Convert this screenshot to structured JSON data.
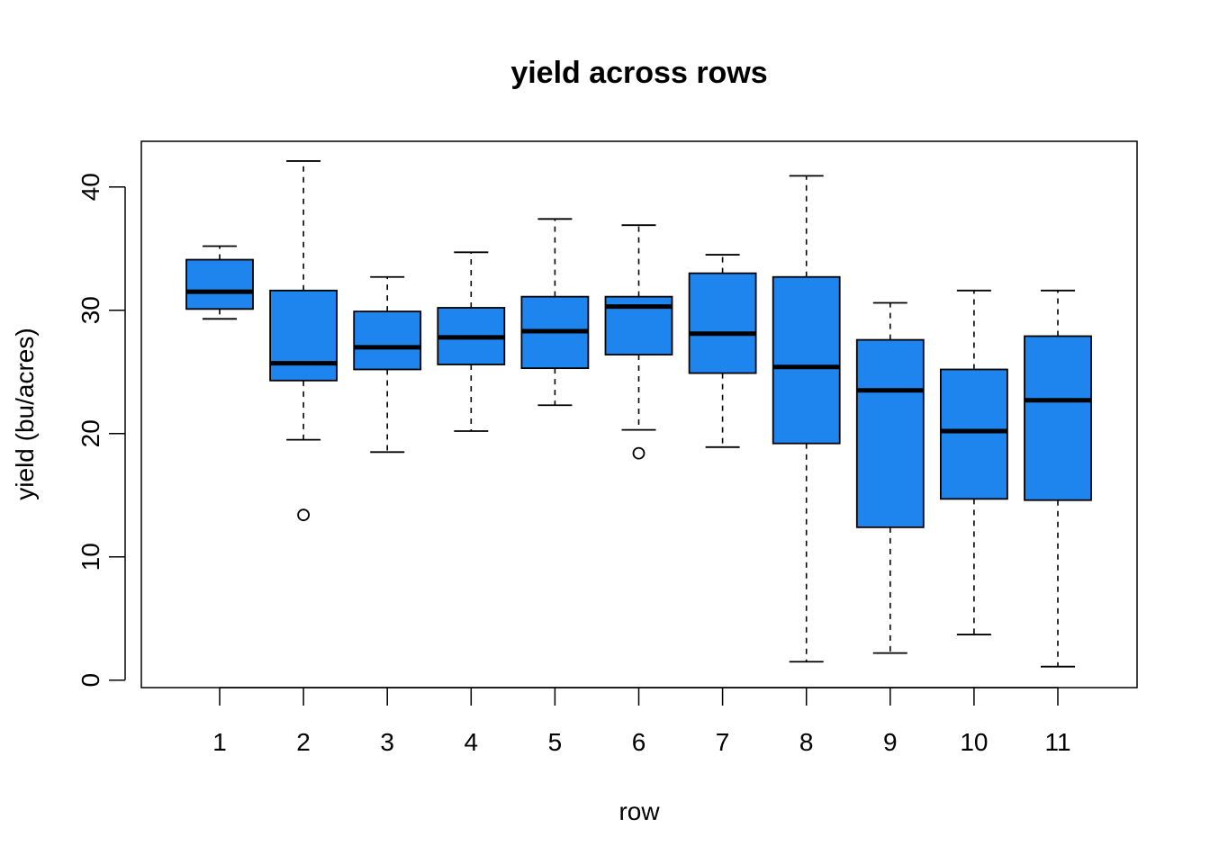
{
  "chart_data": {
    "type": "box",
    "title": "yield across rows",
    "xlabel": "row",
    "ylabel": "yield (bu/acres)",
    "ylim": [
      -0.6,
      43.7
    ],
    "yticks": [
      0,
      10,
      20,
      30,
      40
    ],
    "box_color": "#1E85EE",
    "categories": [
      "1",
      "2",
      "3",
      "4",
      "5",
      "6",
      "7",
      "8",
      "9",
      "10",
      "11"
    ],
    "boxes": [
      {
        "lower_whisker": 29.3,
        "q1": 30.1,
        "median": 31.5,
        "q3": 34.1,
        "upper_whisker": 35.2,
        "outliers": []
      },
      {
        "lower_whisker": 19.5,
        "q1": 24.3,
        "median": 25.7,
        "q3": 31.6,
        "upper_whisker": 42.1,
        "outliers": [
          13.4
        ]
      },
      {
        "lower_whisker": 18.5,
        "q1": 25.2,
        "median": 27.0,
        "q3": 29.9,
        "upper_whisker": 32.7,
        "outliers": []
      },
      {
        "lower_whisker": 20.2,
        "q1": 25.6,
        "median": 27.8,
        "q3": 30.2,
        "upper_whisker": 34.7,
        "outliers": []
      },
      {
        "lower_whisker": 22.3,
        "q1": 25.3,
        "median": 28.3,
        "q3": 31.1,
        "upper_whisker": 37.4,
        "outliers": []
      },
      {
        "lower_whisker": 20.3,
        "q1": 26.4,
        "median": 30.3,
        "q3": 31.1,
        "upper_whisker": 36.9,
        "outliers": [
          18.4
        ]
      },
      {
        "lower_whisker": 18.9,
        "q1": 24.9,
        "median": 28.1,
        "q3": 33.0,
        "upper_whisker": 34.5,
        "outliers": []
      },
      {
        "lower_whisker": 1.5,
        "q1": 19.2,
        "median": 25.4,
        "q3": 32.7,
        "upper_whisker": 40.9,
        "outliers": []
      },
      {
        "lower_whisker": 2.2,
        "q1": 12.4,
        "median": 23.5,
        "q3": 27.6,
        "upper_whisker": 30.6,
        "outliers": []
      },
      {
        "lower_whisker": 3.7,
        "q1": 14.7,
        "median": 20.2,
        "q3": 25.2,
        "upper_whisker": 31.6,
        "outliers": []
      },
      {
        "lower_whisker": 1.1,
        "q1": 14.6,
        "median": 22.7,
        "q3": 27.9,
        "upper_whisker": 31.6,
        "outliers": []
      }
    ]
  }
}
